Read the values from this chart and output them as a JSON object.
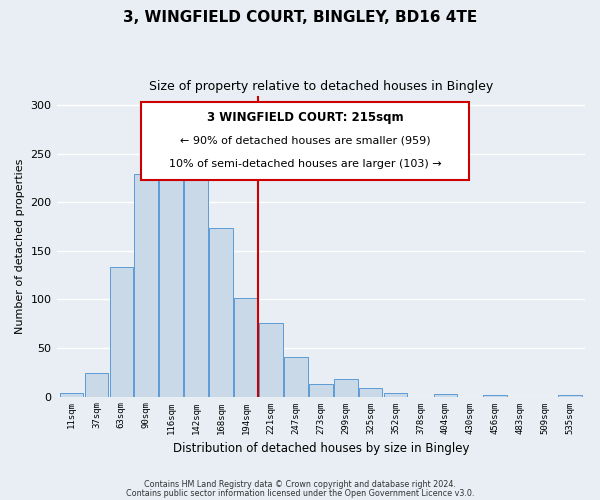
{
  "title": "3, WINGFIELD COURT, BINGLEY, BD16 4TE",
  "subtitle": "Size of property relative to detached houses in Bingley",
  "xlabel": "Distribution of detached houses by size in Bingley",
  "ylabel": "Number of detached properties",
  "bar_labels": [
    "11sqm",
    "37sqm",
    "63sqm",
    "90sqm",
    "116sqm",
    "142sqm",
    "168sqm",
    "194sqm",
    "221sqm",
    "247sqm",
    "273sqm",
    "299sqm",
    "325sqm",
    "352sqm",
    "378sqm",
    "404sqm",
    "430sqm",
    "456sqm",
    "483sqm",
    "509sqm",
    "535sqm"
  ],
  "bar_values": [
    4,
    24,
    133,
    229,
    230,
    245,
    174,
    102,
    76,
    41,
    13,
    18,
    9,
    4,
    0,
    3,
    0,
    2,
    0,
    0,
    2
  ],
  "bar_color": "#c9d9e8",
  "bar_edge_color": "#5b9bd5",
  "vline_index": 8,
  "vline_color": "#cc0000",
  "annotation_title": "3 WINGFIELD COURT: 215sqm",
  "annotation_line1": "← 90% of detached houses are smaller (959)",
  "annotation_line2": "10% of semi-detached houses are larger (103) →",
  "annotation_box_color": "#cc0000",
  "ylim": [
    0,
    310
  ],
  "yticks": [
    0,
    50,
    100,
    150,
    200,
    250,
    300
  ],
  "footer1": "Contains HM Land Registry data © Crown copyright and database right 2024.",
  "footer2": "Contains public sector information licensed under the Open Government Licence v3.0.",
  "bg_color": "#e8eef4"
}
